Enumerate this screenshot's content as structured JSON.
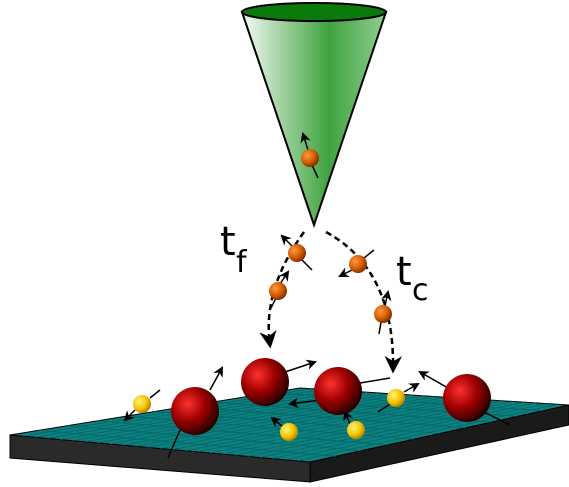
{
  "labels": [
    {
      "base": "t",
      "subscript": "f"
    },
    {
      "base": "t",
      "subscript": "c"
    }
  ]
}
